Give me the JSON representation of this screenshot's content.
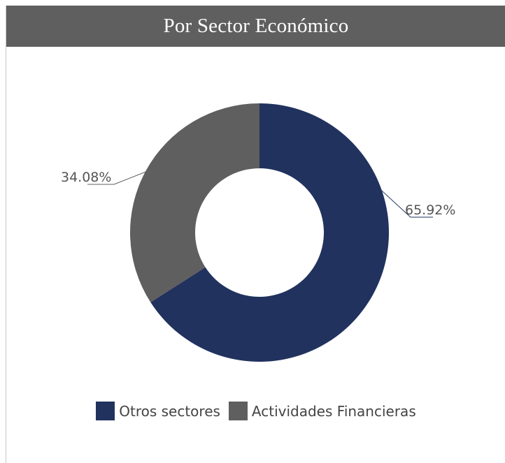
{
  "header": {
    "title": "Por Sector Económico"
  },
  "chart_data": {
    "type": "pie",
    "donut": true,
    "title": "Por Sector Económico",
    "categories": [
      "Otros sectores",
      "Actividades Financieras"
    ],
    "values": [
      65.92,
      34.08
    ],
    "labels": [
      "65.92%",
      "34.08%"
    ],
    "colors": [
      "#21325e",
      "#5f5f5f"
    ],
    "legend_position": "bottom"
  },
  "legend": {
    "items": [
      {
        "label": "Otros sectores",
        "color": "#21325e"
      },
      {
        "label": "Actividades Financieras",
        "color": "#5f5f5f"
      }
    ]
  }
}
